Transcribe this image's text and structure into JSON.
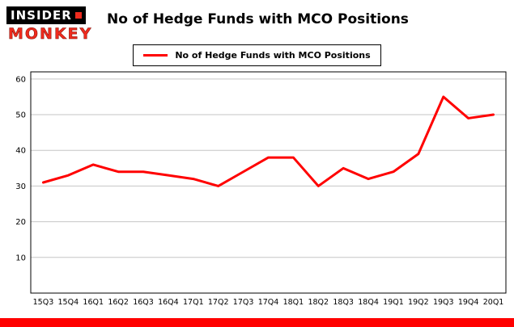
{
  "header": {
    "logo_line1": "INSIDER",
    "logo_line2": "MONKEY",
    "title": "No of Hedge Funds with MCO Positions"
  },
  "legend": {
    "label": "No of Hedge Funds with MCO Positions",
    "color": "#ff0000"
  },
  "colors": {
    "accent_red": "#ff0000",
    "logo_red": "#ee2b1e",
    "logo_black": "#000000",
    "gridline_gray": "#c6c6c6",
    "text_black": "#000000"
  },
  "chart_data": {
    "type": "line",
    "title": "No of Hedge Funds with MCO Positions",
    "categories": [
      "15Q3",
      "15Q4",
      "16Q1",
      "16Q2",
      "16Q3",
      "16Q4",
      "17Q1",
      "17Q2",
      "17Q3",
      "17Q4",
      "18Q1",
      "18Q2",
      "18Q3",
      "18Q4",
      "19Q1",
      "19Q2",
      "19Q3",
      "19Q4",
      "20Q1"
    ],
    "series": [
      {
        "name": "No of Hedge Funds with MCO Positions",
        "color": "#ff0000",
        "values": [
          31,
          33,
          36,
          34,
          34,
          33,
          32,
          30,
          34,
          38,
          38,
          30,
          35,
          32,
          34,
          39,
          55,
          49,
          50
        ]
      }
    ],
    "xlabel": "",
    "ylabel": "",
    "ylim": [
      0,
      62
    ],
    "yticks": [
      10,
      20,
      30,
      40,
      50,
      60
    ],
    "grid": true,
    "legend_position": "top"
  }
}
